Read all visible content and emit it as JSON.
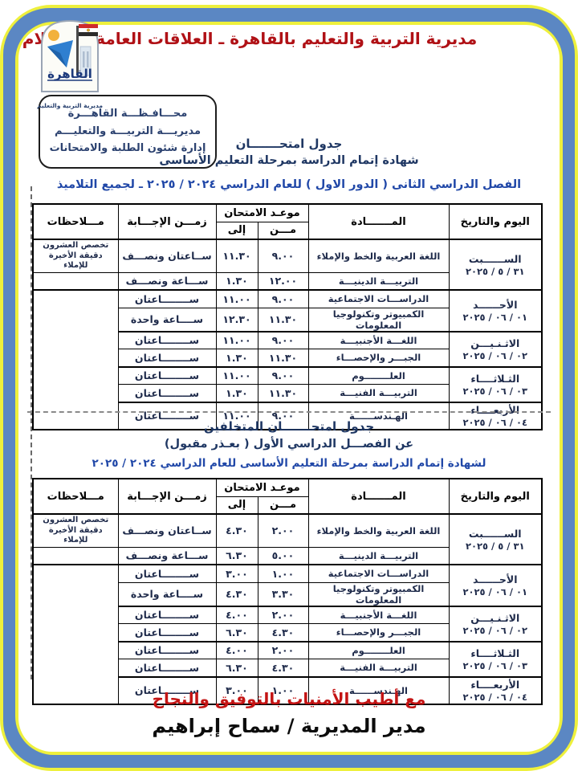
{
  "header": {
    "title": "مديرية التربية والتعليم بالقاهرة ـ العلاقات العامة والإعـلام",
    "logo": {
      "city": "القاهرة",
      "caption": "مديرية التربية والتعليم"
    }
  },
  "stamp": {
    "line1": "محـــافـظـــة القاهـــرة",
    "line2": "مديريـــة التربيـــة والتعليـــم",
    "line3": "إدارة شئون الطلبة والامتحانات"
  },
  "section1": {
    "line1": "جدول امتحـــــــان",
    "line2": "شهادة إتمام الدراسة بمرحلة التعليم الأساسى",
    "line3": "الفصل الدراسي الثانى ( الدور الاول ) للعام الدراسي ٢٠٢٤ / ٢٠٢٥ ـ لجميع التلاميذ"
  },
  "section2": {
    "line1": "جدول امتحـــــــان المتخلفين",
    "line2": "عن الفصـــل الدراسي الأول ( بعـذر مقبول)",
    "line3": "لشهادة إتمام الدراسة بمرحلة التعليم الأساسى للعام الدراسي ٢٠٢٤ / ٢٠٢٥"
  },
  "table_headers": {
    "day": "اليوم والتاريخ",
    "subject": "المـــــــادة",
    "time": "موعـد الامتحان",
    "from": "مـــن",
    "to": "إلى",
    "duration": "زمـــن الإجـــابة",
    "notes": "مـــلاحظات"
  },
  "note_text": "تخصص العشرون دقيقة الأخيرة للإملاء",
  "table1": {
    "groups": [
      {
        "day": "الســــــبت",
        "date": "٣١ / ٥ / ٢٠٢٥",
        "rows": [
          {
            "subject": "اللغة العربية والخط والإملاء",
            "from": "٩.٠٠",
            "to": "١١.٣٠",
            "duration": "ســاعتان ونصـــف"
          },
          {
            "subject": "التربيـــة الدينيـــة",
            "from": "١٢.٠٠",
            "to": "١.٣٠",
            "duration": "ســـاعة ونصـــف"
          }
        ]
      },
      {
        "day": "الأحــــــد",
        "date": "٠١ / ٠٦ / ٢٠٢٥",
        "rows": [
          {
            "subject": "الدراســـات الاجتماعية",
            "from": "٩.٠٠",
            "to": "١١.٠٠",
            "duration": "ســــــــاعتان"
          },
          {
            "subject": "الكمبيوتر وتكنولوجيا المعلومات",
            "from": "١١.٣٠",
            "to": "١٢.٣٠",
            "duration": "ســــاعة واحدة"
          }
        ]
      },
      {
        "day": "الاثـنـيـــن",
        "date": "٠٢ / ٠٦ / ٢٠٢٥",
        "rows": [
          {
            "subject": "اللغـــة الأجنبيـــة",
            "from": "٩.٠٠",
            "to": "١١.٠٠",
            "duration": "ســــــــاعتان"
          },
          {
            "subject": "الجبـــر والإحصـــاء",
            "from": "١١.٣٠",
            "to": "١.٣٠",
            "duration": "ســــــــاعتان"
          }
        ]
      },
      {
        "day": "الثـلاثــــاء",
        "date": "٠٣ / ٠٦ / ٢٠٢٥",
        "rows": [
          {
            "subject": "العلــــــــوم",
            "from": "٩.٠٠",
            "to": "١١.٠٠",
            "duration": "ســــــــاعتان"
          },
          {
            "subject": "التربيـــة الفنيـــة",
            "from": "١١.٣٠",
            "to": "١.٣٠",
            "duration": "ســــــــاعتان"
          }
        ]
      },
      {
        "day": "الأربعــــاء",
        "date": "٠٤ / ٠٦ / ٢٠٢٥",
        "rows": [
          {
            "subject": "الهـندســــــة",
            "from": "٩.٠٠",
            "to": "١١.٠٠",
            "duration": "ســــــــاعتان"
          }
        ]
      }
    ]
  },
  "table2": {
    "groups": [
      {
        "day": "الســــــبت",
        "date": "٣١ / ٥ / ٢٠٢٥",
        "rows": [
          {
            "subject": "اللغة العربية والخط والإملاء",
            "from": "٢.٠٠",
            "to": "٤.٣٠",
            "duration": "ســاعتان ونصـــف"
          },
          {
            "subject": "التربيـــة الدينيـــة",
            "from": "٥.٠٠",
            "to": "٦.٣٠",
            "duration": "ســـاعة ونصـــف"
          }
        ]
      },
      {
        "day": "الأحــــــد",
        "date": "٠١ / ٠٦ / ٢٠٢٥",
        "rows": [
          {
            "subject": "الدراســـات الاجتماعية",
            "from": "١.٠٠",
            "to": "٣.٠٠",
            "duration": "ســــــــاعتان"
          },
          {
            "subject": "الكمبيوتر وتكنولوجيا المعلومات",
            "from": "٣.٣٠",
            "to": "٤.٣٠",
            "duration": "ســــاعة واحدة"
          }
        ]
      },
      {
        "day": "الاثـنـيـــن",
        "date": "٠٢ / ٠٦ / ٢٠٢٥",
        "rows": [
          {
            "subject": "اللغـــة الأجنبيـــة",
            "from": "٢.٠٠",
            "to": "٤.٠٠",
            "duration": "ســــــــاعتان"
          },
          {
            "subject": "الجبـــر والإحصـــاء",
            "from": "٤.٣٠",
            "to": "٦.٣٠",
            "duration": "ســــــــاعتان"
          }
        ]
      },
      {
        "day": "الثـلاثــــاء",
        "date": "٠٣ / ٠٦ / ٢٠٢٥",
        "rows": [
          {
            "subject": "العلــــــــوم",
            "from": "٢.٠٠",
            "to": "٤.٠٠",
            "duration": "ســــــــاعتان"
          },
          {
            "subject": "التربيـــة الفنيـــة",
            "from": "٤.٣٠",
            "to": "٦.٣٠",
            "duration": "ســــــــاعتان"
          }
        ]
      },
      {
        "day": "الأربعــــاء",
        "date": "٠٤ / ٠٦ / ٢٠٢٥",
        "rows": [
          {
            "subject": "الهـندســــــة",
            "from": "١.٠٠",
            "to": "٣.٠٠",
            "duration": "ســــــــاعتان"
          }
        ]
      }
    ]
  },
  "footer": {
    "wishes": "مع أطيب الأمنيات بالتوفيق والنجاح",
    "signature": "مدير المديرية / سماح إبراهيم"
  },
  "colors": {
    "frame_blue": "#5b87c3",
    "frame_yellow": "#eef03c",
    "title_red": "#b01116",
    "footer_red": "#c41414",
    "text_navy": "#1e2a4a",
    "subtitle_blue": "#2148a8"
  }
}
